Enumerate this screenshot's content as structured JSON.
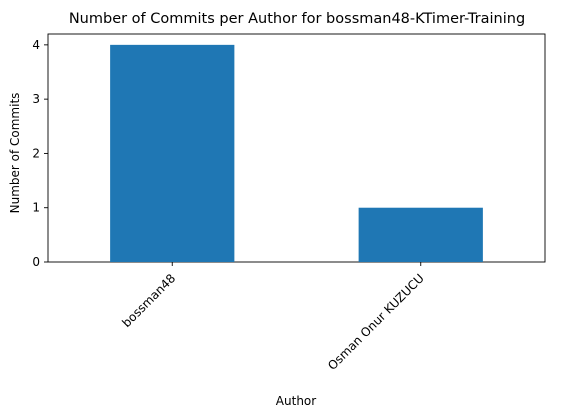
{
  "chart_data": {
    "type": "bar",
    "title": "Number of Commits per Author for bossman48-KTimer-Training",
    "xlabel": "Author",
    "ylabel": "Number of Commits",
    "categories": [
      "bossman48",
      "Osman Onur KUZUCU"
    ],
    "values": [
      4,
      1
    ],
    "yticks": [
      0,
      1,
      2,
      3,
      4
    ],
    "ylim": [
      0,
      4.2
    ],
    "grid": false,
    "legend": "none",
    "bar_color": "#1f77b4"
  }
}
